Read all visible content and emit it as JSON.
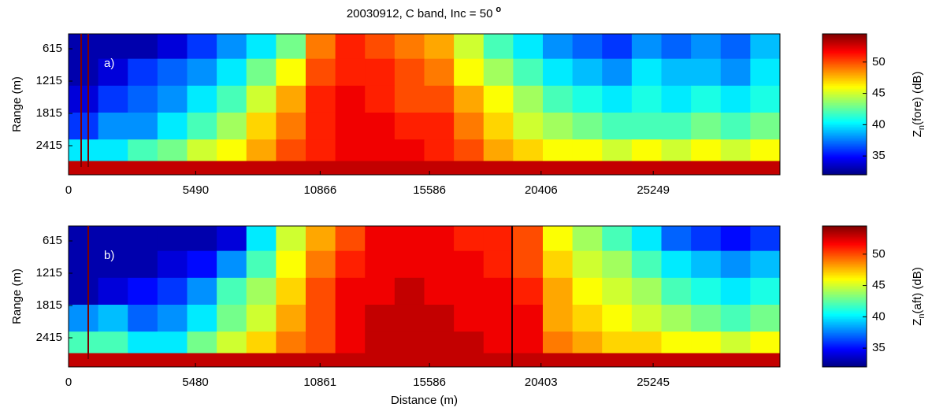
{
  "chart_data": [
    {
      "type": "heatmap",
      "title": "20030912, C band, Inc = 50",
      "title_superscript": "o",
      "panel_label": "a)",
      "ylabel": "Range (m)",
      "colormap": "jet",
      "xlim": [
        0,
        30720
      ],
      "xticks": [
        0,
        5490,
        10866,
        15586,
        20406,
        25249
      ],
      "ylim": [
        337,
        2956
      ],
      "y_inverted": true,
      "yticks": [
        615,
        1215,
        1815,
        2415
      ],
      "x_bins": [
        0,
        1280,
        2560,
        3840,
        5120,
        6400,
        7680,
        8960,
        10240,
        11520,
        12800,
        14080,
        15360,
        16640,
        17920,
        19200,
        20480,
        21760,
        23040,
        24320,
        25600,
        26880,
        28160,
        29440,
        30720
      ],
      "y_bins": [
        337,
        800,
        1300,
        1800,
        2300,
        2700,
        2956
      ],
      "values": [
        [
          33,
          33,
          33,
          34,
          36,
          38,
          40,
          43,
          49,
          51,
          50,
          49,
          48,
          45,
          42,
          40,
          38,
          37,
          36,
          38,
          37,
          38,
          37,
          39
        ],
        [
          33,
          34,
          36,
          37,
          38,
          40,
          43,
          46,
          50,
          51,
          51,
          50,
          49,
          46,
          44,
          42,
          40,
          39,
          38,
          40,
          39,
          39,
          38,
          40
        ],
        [
          34,
          36,
          37,
          38,
          40,
          42,
          45,
          48,
          51,
          52,
          51,
          50,
          50,
          48,
          46,
          44,
          42,
          41,
          40,
          41,
          40,
          41,
          40,
          41
        ],
        [
          36,
          38,
          38,
          40,
          42,
          44,
          47,
          49,
          51,
          52,
          52,
          51,
          51,
          49,
          47,
          45,
          44,
          43,
          42,
          42,
          42,
          43,
          42,
          43
        ],
        [
          40,
          40,
          42,
          43,
          45,
          46,
          48,
          50,
          51,
          52,
          52,
          52,
          51,
          50,
          48,
          47,
          46,
          46,
          45,
          46,
          45,
          46,
          45,
          46
        ],
        [
          53,
          53,
          53,
          53,
          53,
          53,
          53,
          53,
          53,
          53,
          53,
          53,
          53,
          53,
          53,
          53,
          53,
          53,
          53,
          53,
          53,
          53,
          53,
          53
        ]
      ],
      "clim": [
        32,
        54.5
      ],
      "cticks": [
        35,
        40,
        45,
        50
      ],
      "colorbar_label": {
        "main": "Z",
        "sub": "n",
        "rest": "(fore) (dB)"
      }
    },
    {
      "type": "heatmap",
      "panel_label": "b)",
      "ylabel": "Range (m)",
      "xlabel": "Distance (m)",
      "colormap": "jet",
      "xlim": [
        0,
        30720
      ],
      "xticks": [
        0,
        5480,
        10861,
        15586,
        20403,
        25245
      ],
      "ylim": [
        337,
        2956
      ],
      "y_inverted": true,
      "yticks": [
        615,
        1215,
        1815,
        2415
      ],
      "x_bins": [
        0,
        1280,
        2560,
        3840,
        5120,
        6400,
        7680,
        8960,
        10240,
        11520,
        12800,
        14080,
        15360,
        16640,
        17920,
        19200,
        20480,
        21760,
        23040,
        24320,
        25600,
        26880,
        28160,
        29440,
        30720
      ],
      "y_bins": [
        337,
        800,
        1300,
        1800,
        2300,
        2700,
        2956
      ],
      "values": [
        [
          33,
          33,
          33,
          33,
          33,
          34,
          40,
          45,
          48,
          50,
          52,
          52,
          52,
          51,
          51,
          50,
          46,
          44,
          42,
          40,
          37,
          36,
          35,
          36
        ],
        [
          33,
          33,
          33,
          34,
          35,
          38,
          42,
          46,
          49,
          51,
          52,
          52,
          52,
          52,
          51,
          50,
          47,
          45,
          44,
          42,
          40,
          39,
          38,
          39
        ],
        [
          33,
          34,
          35,
          36,
          38,
          42,
          44,
          47,
          50,
          52,
          52,
          53,
          52,
          52,
          52,
          51,
          48,
          46,
          45,
          44,
          42,
          41,
          40,
          41
        ],
        [
          38,
          39,
          37,
          38,
          40,
          43,
          45,
          48,
          50,
          52,
          53,
          53,
          53,
          52,
          52,
          52,
          48,
          47,
          46,
          45,
          44,
          43,
          42,
          43
        ],
        [
          42,
          42,
          40,
          40,
          43,
          45,
          47,
          49,
          50,
          52,
          53,
          53,
          53,
          53,
          52,
          52,
          49,
          48,
          47,
          47,
          46,
          46,
          45,
          46
        ],
        [
          53,
          53,
          53,
          53,
          53,
          53,
          53,
          53,
          53,
          53,
          53,
          53,
          53,
          53,
          53,
          53,
          53,
          53,
          53,
          53,
          53,
          53,
          53,
          53
        ]
      ],
      "clim": [
        32,
        54.5
      ],
      "cticks": [
        35,
        40,
        45,
        50
      ],
      "colorbar_label": {
        "main": "Z",
        "sub": "n",
        "rest": "(aft) (dB)"
      }
    }
  ]
}
